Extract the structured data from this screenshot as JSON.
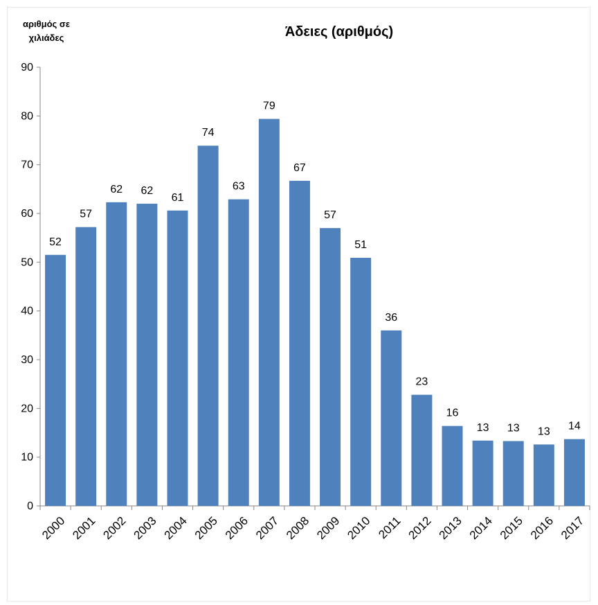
{
  "chart_data": {
    "type": "bar",
    "title": "Άδειες (αριθμός)",
    "ylabel": "αριθμός σε χιλιάδες",
    "xlabel": "",
    "categories": [
      "2000",
      "2001",
      "2002",
      "2003",
      "2004",
      "2005",
      "2006",
      "2007",
      "2008",
      "2009",
      "2010",
      "2011",
      "2012",
      "2013",
      "2014",
      "2015",
      "2016",
      "2017"
    ],
    "values": [
      51.5,
      57.2,
      62.3,
      62.0,
      60.6,
      73.9,
      62.9,
      79.4,
      66.7,
      57.0,
      50.9,
      36.0,
      22.8,
      16.4,
      13.4,
      13.3,
      12.6,
      13.7
    ],
    "data_labels": [
      "52",
      "57",
      "62",
      "62",
      "61",
      "74",
      "63",
      "79",
      "67",
      "57",
      "51",
      "36",
      "23",
      "16",
      "13",
      "13",
      "13",
      "14"
    ],
    "ylim": [
      0,
      90
    ],
    "yticks": [
      0,
      10,
      20,
      30,
      40,
      50,
      60,
      70,
      80,
      90
    ],
    "grid": false,
    "legend": "none",
    "bar_color": "#4F81BD"
  }
}
